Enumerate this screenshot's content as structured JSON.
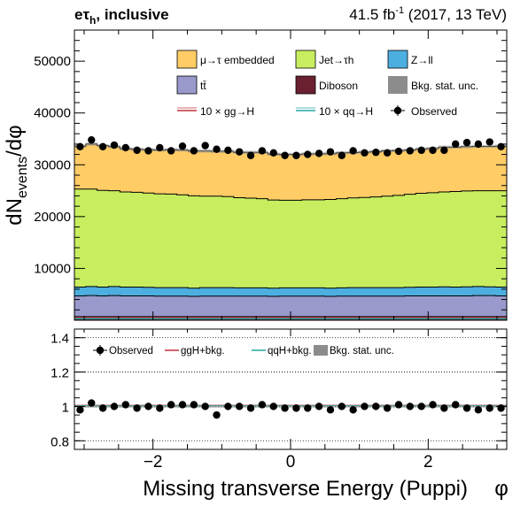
{
  "header": {
    "channel_main": "eτ",
    "channel_sub": "h",
    "channel_tail": ", inclusive",
    "lumi_main": "41.5 fb",
    "lumi_sup": "-1",
    "lumi_tail": " (2017, 13 TeV)"
  },
  "axes": {
    "ylabel_main": "dN",
    "ylabel_sub": "events",
    "ylabel_tail": "/dφ",
    "xlabel": "Missing transverse Energy (Puppi)",
    "xlabel_symbol": "φ"
  },
  "legend_main": [
    {
      "label": "μ→τ embedded",
      "color": "#ffcc66"
    },
    {
      "label": "Jet→τh",
      "color": "#c8ee60"
    },
    {
      "label": "Z→ll",
      "color": "#4daee0"
    },
    {
      "label": "tt̄",
      "color": "#9999cc"
    },
    {
      "label": "Diboson",
      "color": "#6b2030"
    },
    {
      "label": "Bkg. stat. unc.",
      "color": "#8c8c8c"
    },
    {
      "label": "10 × gg→H",
      "color": "#c0303c"
    },
    {
      "label": "10 × qq→H",
      "color": "#20a8a0"
    },
    {
      "label": "Observed",
      "color": "#000000"
    }
  ],
  "legend_ratio": [
    {
      "label": "Observed"
    },
    {
      "label": "ggH+bkg."
    },
    {
      "label": "qqH+bkg."
    },
    {
      "label": "Bkg. stat. unc."
    }
  ],
  "colors": {
    "embedded": "#ffcc66",
    "jetfakes": "#c8ee60",
    "zll": "#4daee0",
    "ttbar": "#9999cc",
    "diboson": "#6b2030",
    "ggh": "#c0303c",
    "qqh": "#20a8a0",
    "unc": "#8c8c8c"
  },
  "chart_data": [
    {
      "type": "area",
      "panel": "main",
      "xlim": [
        -3.1416,
        3.1416
      ],
      "ylim": [
        0,
        56000
      ],
      "yticks": [
        10000,
        20000,
        30000,
        40000,
        50000
      ],
      "ytick_labels": [
        "10000",
        "20000",
        "30000",
        "40000",
        "50000"
      ],
      "stacked": true,
      "nbins": 38,
      "series": [
        {
          "name": "Diboson",
          "values": [
            700,
            700,
            700,
            700,
            700,
            700,
            700,
            700,
            700,
            700,
            700,
            700,
            700,
            700,
            700,
            700,
            700,
            700,
            700,
            700,
            700,
            700,
            700,
            700,
            700,
            700,
            700,
            700,
            700,
            700,
            700,
            700,
            700,
            700,
            700,
            700,
            700,
            700
          ]
        },
        {
          "name": "tt̄",
          "values": [
            4000,
            4050,
            4000,
            4050,
            4000,
            4000,
            4000,
            3950,
            3950,
            3950,
            3900,
            3950,
            3950,
            3950,
            3950,
            3950,
            3950,
            3900,
            3950,
            3950,
            3950,
            3950,
            3900,
            3950,
            3950,
            3950,
            3950,
            3950,
            3950,
            4000,
            4000,
            4000,
            4000,
            4000,
            4000,
            4050,
            4050,
            4000
          ]
        },
        {
          "name": "Z→ll",
          "values": [
            1700,
            1750,
            1700,
            1750,
            1700,
            1700,
            1650,
            1650,
            1650,
            1650,
            1600,
            1650,
            1650,
            1650,
            1600,
            1600,
            1600,
            1600,
            1600,
            1600,
            1600,
            1600,
            1600,
            1600,
            1650,
            1650,
            1650,
            1650,
            1650,
            1650,
            1700,
            1700,
            1750,
            1700,
            1750,
            1750,
            1700,
            1700
          ]
        },
        {
          "name": "Jet→τh",
          "values": [
            18900,
            18800,
            18650,
            18500,
            18350,
            18300,
            18200,
            18100,
            18050,
            17900,
            17800,
            17650,
            17650,
            17550,
            17400,
            17300,
            17200,
            17000,
            16900,
            16900,
            17000,
            17000,
            17100,
            17200,
            17300,
            17400,
            17500,
            17650,
            17800,
            17950,
            18100,
            18200,
            18300,
            18450,
            18500,
            18500,
            18550,
            18600
          ]
        },
        {
          "name": "μ→τ embedded",
          "values": [
            8300,
            8700,
            8650,
            8500,
            8350,
            8300,
            8350,
            8450,
            8550,
            8650,
            8650,
            8700,
            8650,
            8750,
            8750,
            8850,
            8950,
            8850,
            8850,
            8850,
            8850,
            8850,
            8850,
            8850,
            8750,
            8750,
            8750,
            8750,
            8650,
            8550,
            8550,
            8550,
            8650,
            8550,
            8550,
            8550,
            8550,
            8600
          ]
        }
      ],
      "observed": [
        33500,
        34800,
        33500,
        33800,
        33300,
        32800,
        32700,
        33300,
        32700,
        33600,
        32700,
        33700,
        33000,
        32800,
        32500,
        31800,
        32700,
        32300,
        31800,
        31800,
        32000,
        32200,
        32500,
        31800,
        32700,
        32300,
        32400,
        32300,
        32600,
        32700,
        32800,
        32800,
        32800,
        34000,
        34300,
        34000,
        34400,
        33500
      ],
      "signal_scale": 10,
      "signal_level_10x_ggH": 520,
      "signal_level_10x_qqH": 300
    },
    {
      "type": "line",
      "panel": "ratio",
      "xlim": [
        -3.1416,
        3.1416
      ],
      "ylim": [
        0.75,
        1.45
      ],
      "yticks": [
        0.8,
        1.0,
        1.2,
        1.4
      ],
      "ytick_labels": [
        "0.8",
        "1",
        "1.2",
        "1.4"
      ],
      "xticks": [
        -2,
        0,
        2
      ],
      "xtick_labels": [
        "−2",
        "0",
        "2"
      ],
      "reference_lines": [
        0.8,
        1.0,
        1.2,
        1.4
      ],
      "ratio_ggH_plus_bkg": 1.006,
      "ratio_qqH_plus_bkg": 1.004,
      "observed_ratio": [
        0.98,
        1.02,
        0.99,
        1.0,
        1.01,
        0.99,
        1.0,
        0.99,
        1.01,
        1.01,
        1.01,
        1.0,
        0.95,
        1.0,
        1.0,
        0.99,
        1.01,
        1.0,
        0.99,
        0.99,
        0.99,
        1.0,
        0.98,
        1.0,
        0.98,
        1.0,
        1.0,
        0.99,
        1.01,
        1.0,
        1.0,
        1.01,
        0.99,
        1.01,
        0.99,
        0.98,
        0.99,
        0.99
      ]
    }
  ]
}
